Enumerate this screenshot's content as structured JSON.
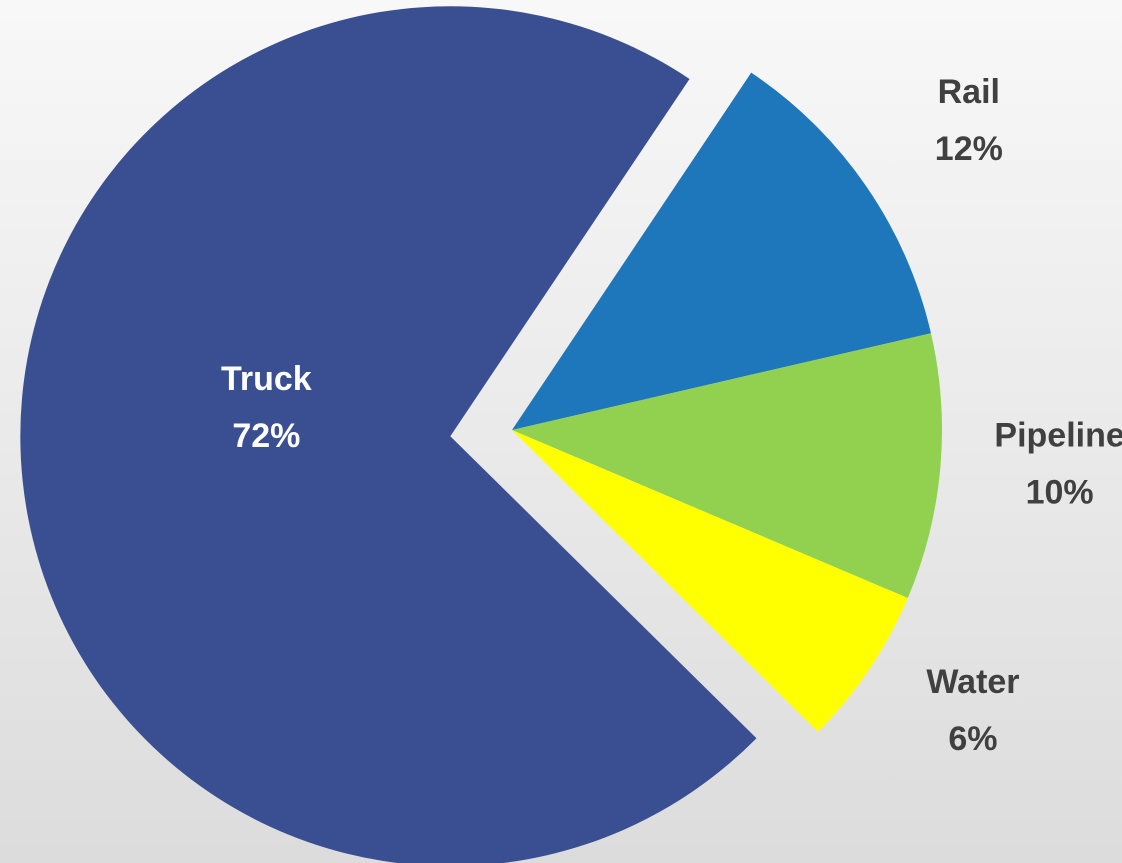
{
  "chart_data": {
    "type": "pie",
    "categories": [
      "Truck",
      "Rail",
      "Pipeline",
      "Water"
    ],
    "values": [
      72,
      12,
      10,
      6
    ],
    "value_labels": [
      "72%",
      "12%",
      "10%",
      "6%"
    ],
    "colors": [
      "#3a4f91",
      "#1f77bb",
      "#92d050",
      "#ffff00"
    ]
  }
}
